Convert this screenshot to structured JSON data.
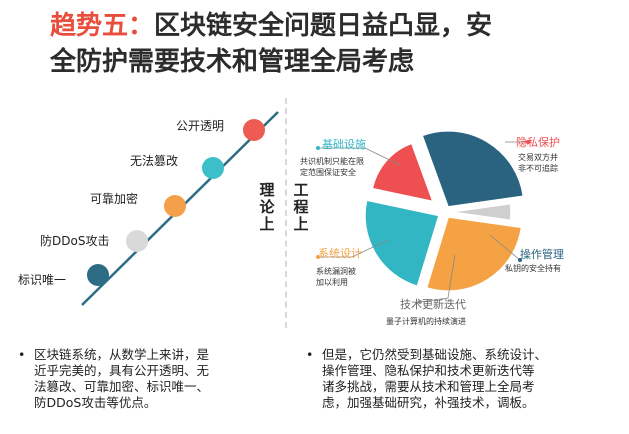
{
  "title": {
    "highlight": "趋势五：",
    "line1": "区块链安全问题日益凸显，安",
    "line2": "全防护需要技术和管理全局考虑"
  },
  "left": {
    "vertical_label": "理论上",
    "items": [
      {
        "label": "公开透明",
        "color": "#ee5b52"
      },
      {
        "label": "无法篡改",
        "color": "#3cbfc9"
      },
      {
        "label": "可靠加密",
        "color": "#f4a04a"
      },
      {
        "label": "防DDoS攻击",
        "color": "#d9d9d9"
      },
      {
        "label": "标识唯一",
        "color": "#2d6c84"
      }
    ]
  },
  "right": {
    "vertical_label": "工程上",
    "segments": [
      {
        "name": "基础设施",
        "desc1": "共识机制只能在限",
        "desc2": "定范围保证安全",
        "color": "#33b6c4"
      },
      {
        "name": "隐私保护",
        "desc1": "交易双方并",
        "desc2": "非不可追踪",
        "color": "#ee5052"
      },
      {
        "name": "操作管理",
        "desc1": "私钥的安全持有",
        "desc2": "",
        "color": "#2a6380"
      },
      {
        "name": "技术更新迭代",
        "desc1": "量子计算机的持续演进",
        "desc2": "",
        "color": "#cfcfcf"
      },
      {
        "name": "系统设计",
        "desc1": "系统漏洞被",
        "desc2": "加以利用",
        "color": "#f4a244"
      }
    ]
  },
  "bottom": {
    "bullet": "•",
    "left_text": [
      "区块链系统，从数学上来讲，是",
      "近乎完美的，具有公开透明、无",
      "法篡改、可靠加密、标识唯一、",
      "防DDoS攻击等优点。"
    ],
    "right_text": [
      "但是，它仍然受到基础设施、系统设计、",
      "操作管理、隐私保护和技术更新迭代等",
      "诸多挑战，需要从技术和管理上全局考",
      "虑，加强基础研究，补强技术，调板。"
    ]
  }
}
